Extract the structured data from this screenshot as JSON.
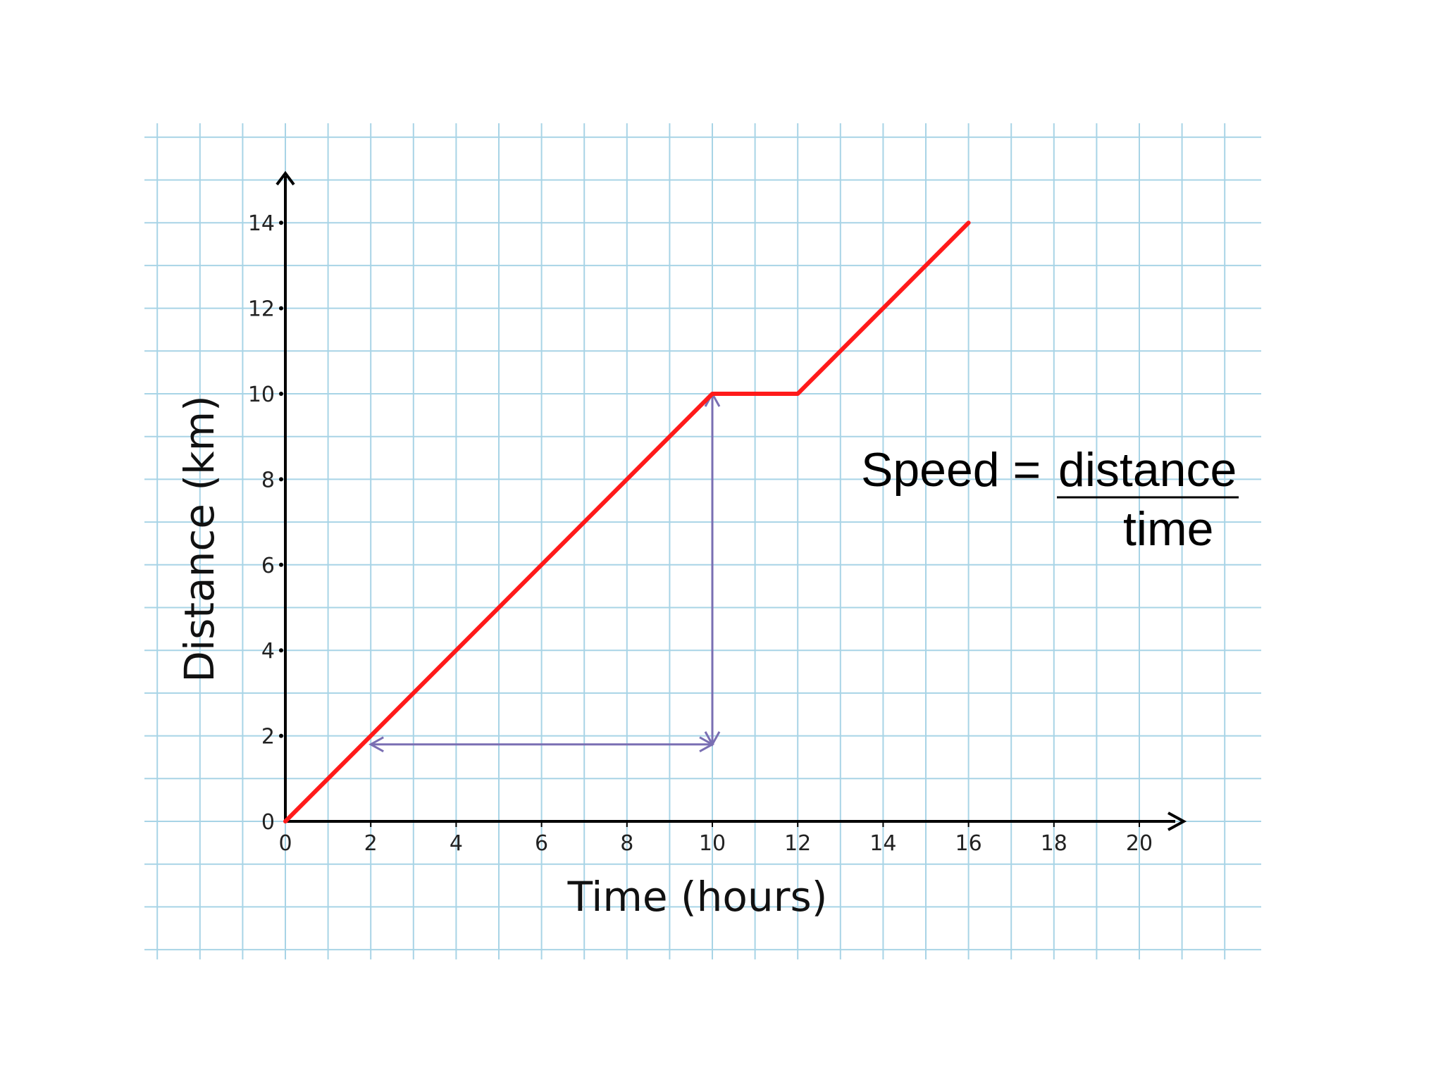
{
  "chart_data": {
    "type": "line",
    "title": "",
    "xlabel": "Time (hours)",
    "ylabel": "Distance (km)",
    "xlim": [
      0,
      20
    ],
    "ylim": [
      0,
      14
    ],
    "x_ticks": [
      "0",
      "2",
      "4",
      "6",
      "8",
      "10",
      "12",
      "14",
      "16",
      "18",
      "20"
    ],
    "y_ticks": [
      "0",
      "2",
      "4",
      "6",
      "8",
      "10",
      "12",
      "14"
    ],
    "grid": true,
    "series": [
      {
        "x": [
          0,
          10,
          12,
          16
        ],
        "y": [
          0,
          10,
          10,
          14
        ],
        "color": "#ff1a1a"
      }
    ],
    "annotations": {
      "horizontal_arrow": {
        "from": [
          2,
          1.8
        ],
        "to": [
          10,
          1.8
        ],
        "color": "#7a6fb3"
      },
      "vertical_arrow": {
        "from": [
          10,
          1.8
        ],
        "to": [
          10,
          10
        ],
        "color": "#7a6fb3"
      }
    },
    "formula": {
      "lhs": "Speed = ",
      "numerator": "distance",
      "denominator": "time"
    }
  },
  "colors": {
    "grid": "#a8d4e6",
    "axis": "#000000"
  }
}
